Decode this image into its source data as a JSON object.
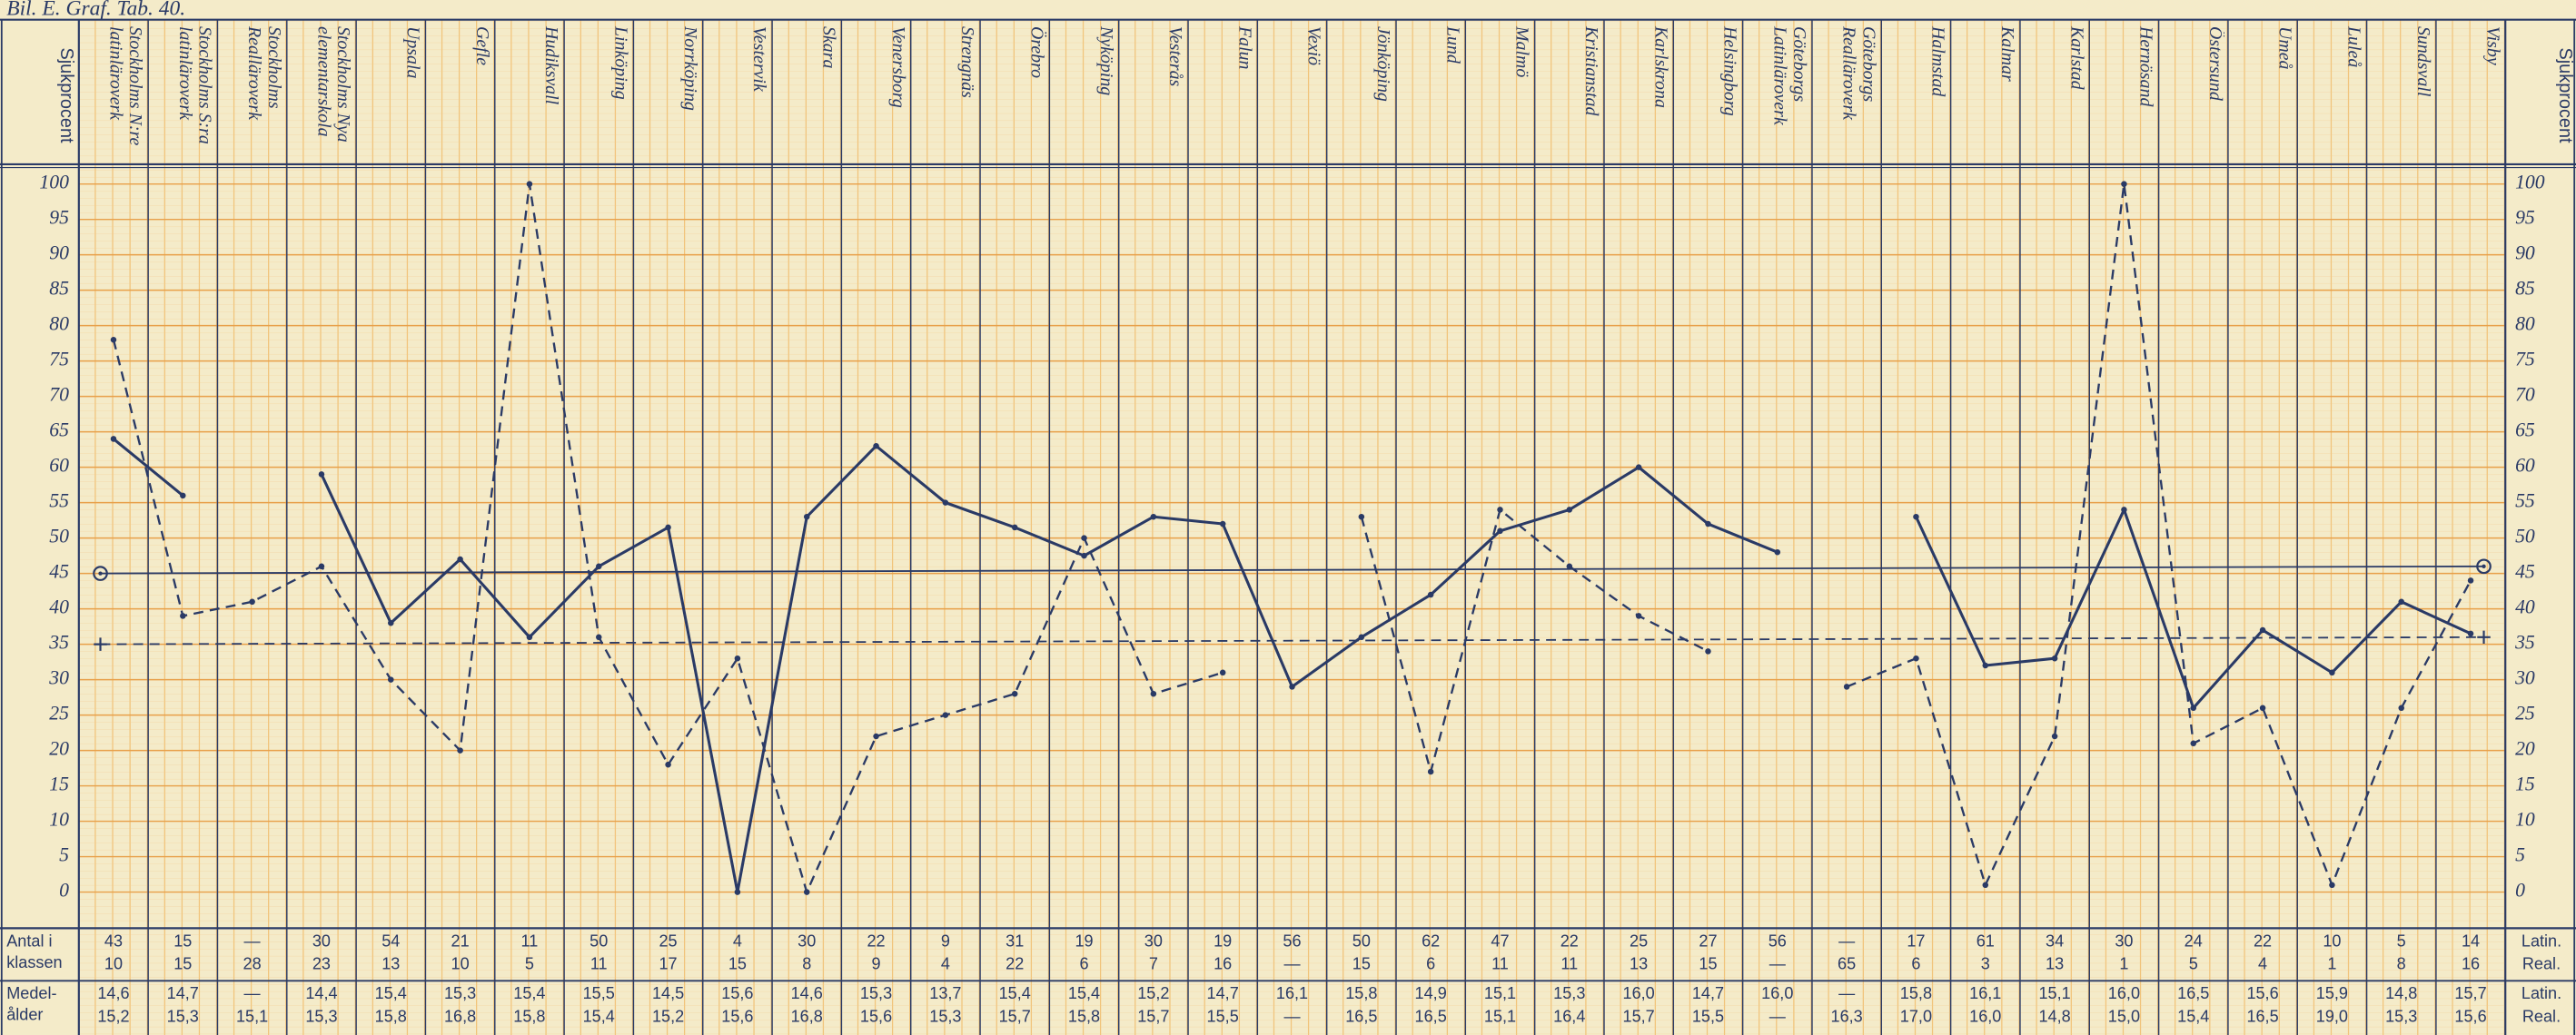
{
  "title": "Bil. E. Graf. Tab. 40.",
  "chart_data": {
    "type": "line",
    "y_label": "Sjukprocent",
    "categories": [
      "Stockholms N:re latinläroverk",
      "Stockholms S:ra latinläroverk",
      "Stockholms Realläroverk",
      "Stockholms Nya elementarskola",
      "Upsala",
      "Gefle",
      "Hudiksvall",
      "Linköping",
      "Norrköping",
      "Vestervik",
      "Skara",
      "Venersborg",
      "Strengnäs",
      "Örebro",
      "Nyköping",
      "Vesterås",
      "Falun",
      "Vexiö",
      "Jönköping",
      "Lund",
      "Malmö",
      "Kristianstad",
      "Karlskrona",
      "Helsingborg",
      "Göteborgs Latinläroverk",
      "Göteborgs Realläroverk",
      "Halmstad",
      "Kalmar",
      "Karlstad",
      "Hernösand",
      "Östersund",
      "Umeå",
      "Luleå",
      "Sundsvall",
      "Visby"
    ],
    "ylim": [
      0,
      100
    ],
    "yticks": [
      0,
      5,
      10,
      15,
      20,
      25,
      30,
      35,
      40,
      45,
      50,
      55,
      60,
      65,
      70,
      75,
      80,
      85,
      90,
      95,
      100
    ],
    "grid": true,
    "series": [
      {
        "style": "solid",
        "color": "#2a3a66",
        "values": [
          64,
          56,
          null,
          59,
          38,
          47,
          36,
          46,
          51.5,
          0,
          53,
          63,
          55,
          51.5,
          47.5,
          53,
          52,
          29,
          36,
          42,
          51,
          54,
          60,
          52,
          48,
          null,
          53,
          32,
          33,
          54,
          26,
          37,
          31,
          41,
          36.5
        ]
      },
      {
        "style": "dashed",
        "color": "#2a3a66",
        "values": [
          78,
          39,
          41,
          46,
          30,
          20,
          100,
          36,
          18,
          33,
          0,
          22,
          25,
          28,
          50,
          28,
          31,
          null,
          53,
          17,
          54,
          46,
          39,
          34,
          null,
          29,
          33,
          1,
          22,
          100,
          21,
          26,
          1,
          26,
          44
        ]
      }
    ],
    "reference_lines": [
      {
        "style": "solid",
        "marker": "circle",
        "values": [
          45,
          46
        ]
      },
      {
        "style": "dashed",
        "marker": "plus",
        "values": [
          35,
          36
        ]
      }
    ]
  },
  "table": {
    "rows": [
      {
        "label": "Antal i klassen",
        "sublabels": [
          "Latin.",
          "Real."
        ],
        "latin": [
          43,
          15,
          "—",
          30,
          54,
          21,
          11,
          50,
          25,
          4,
          30,
          22,
          9,
          31,
          19,
          30,
          19,
          56,
          50,
          62,
          47,
          22,
          25,
          27,
          56,
          "—",
          17,
          61,
          34,
          30,
          24,
          22,
          10,
          5,
          14
        ],
        "real": [
          10,
          15,
          28,
          23,
          13,
          10,
          5,
          11,
          17,
          15,
          8,
          9,
          4,
          22,
          6,
          7,
          16,
          "—",
          15,
          6,
          11,
          11,
          13,
          15,
          "—",
          65,
          6,
          3,
          13,
          1,
          5,
          4,
          1,
          8,
          16
        ]
      },
      {
        "label": "Medel-ålder",
        "sublabels": [
          "Latin.",
          "Real."
        ],
        "latin": [
          "14,6",
          "14,7",
          "—",
          "14,4",
          "15,4",
          "15,3",
          "15,4",
          "15,5",
          "14,5",
          "15,6",
          "14,6",
          "15,3",
          "13,7",
          "15,4",
          "15,4",
          "15,2",
          "14,7",
          "16,1",
          "15,8",
          "14,9",
          "15,1",
          "15,3",
          "16,0",
          "14,7",
          "16,0",
          "—",
          "15,8",
          "16,1",
          "15,1",
          "16,0",
          "16,5",
          "15,6",
          "15,9",
          "14,8",
          "15,7"
        ],
        "real": [
          "15,2",
          "15,3",
          "15,1",
          "15,3",
          "15,8",
          "16,8",
          "15,8",
          "15,4",
          "15,2",
          "15,6",
          "16,8",
          "15,6",
          "15,3",
          "15,7",
          "15,8",
          "15,7",
          "15,5",
          "—",
          "16,5",
          "16,5",
          "15,1",
          "16,4",
          "15,7",
          "15,5",
          "—",
          "16,3",
          "17,0",
          "16,0",
          "14,8",
          "15,0",
          "15,4",
          "16,5",
          "19,0",
          "15,3",
          "15,6"
        ]
      }
    ]
  }
}
